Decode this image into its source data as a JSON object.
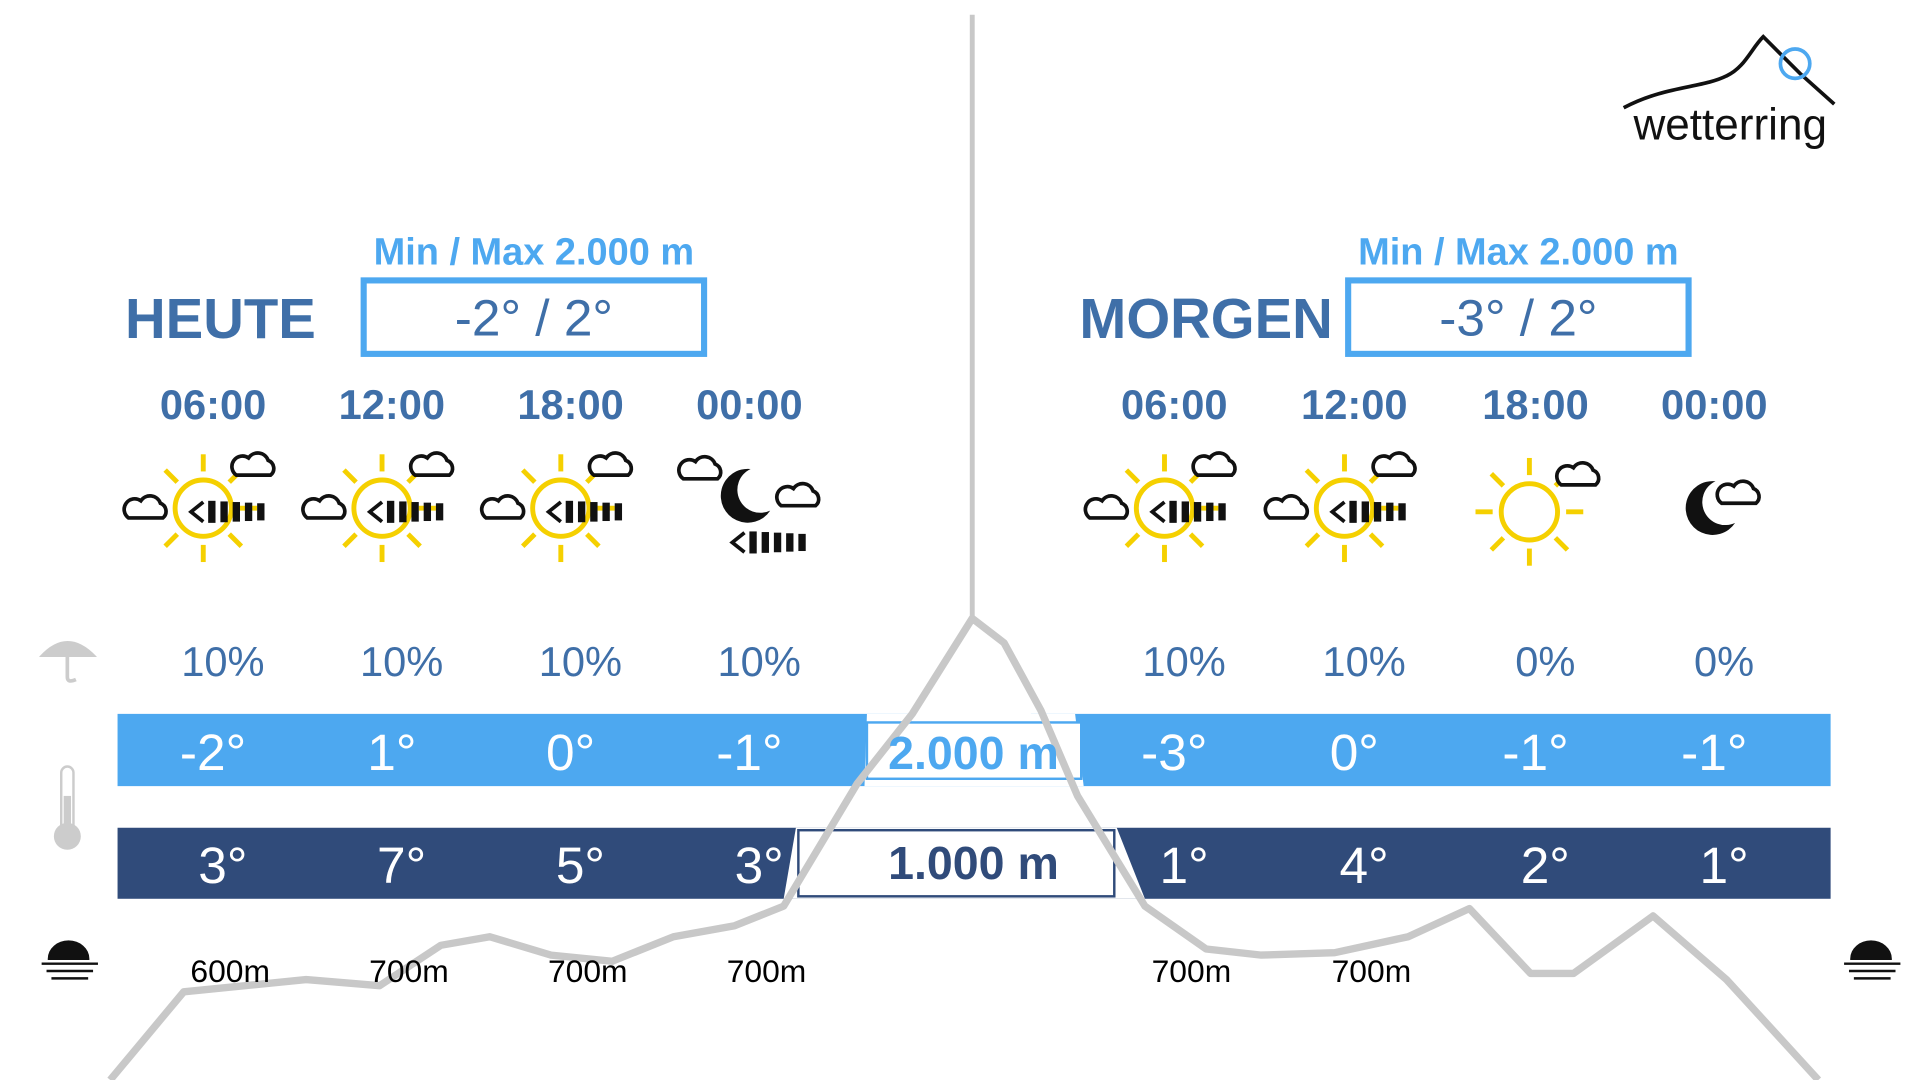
{
  "logo": "wetterring",
  "days": [
    {
      "label": "HEUTE",
      "minmax_label": "Min / Max 2.000 m",
      "minmax": "-2° / 2°",
      "times": [
        "06:00",
        "12:00",
        "18:00",
        "00:00"
      ],
      "precip": [
        "10%",
        "10%",
        "10%",
        "10%"
      ],
      "temp_2000": [
        "-2°",
        "1°",
        "0°",
        "-1°"
      ],
      "temp_1000": [
        "3°",
        "7°",
        "5°",
        "3°"
      ],
      "snowline": [
        "600m",
        "700m",
        "700m",
        "700m"
      ]
    },
    {
      "label": "MORGEN",
      "minmax_label": "Min / Max 2.000 m",
      "minmax": "-3° / 2°",
      "times": [
        "06:00",
        "12:00",
        "18:00",
        "00:00"
      ],
      "precip": [
        "10%",
        "10%",
        "0%",
        "0%"
      ],
      "temp_2000": [
        "-3°",
        "0°",
        "-1°",
        "-1°"
      ],
      "temp_1000": [
        "1°",
        "4°",
        "2°",
        "1°"
      ],
      "snowline": [
        "700m",
        "700m",
        null,
        null
      ]
    }
  ],
  "altitude_labels": [
    "2.000 m",
    "1.000 m"
  ]
}
